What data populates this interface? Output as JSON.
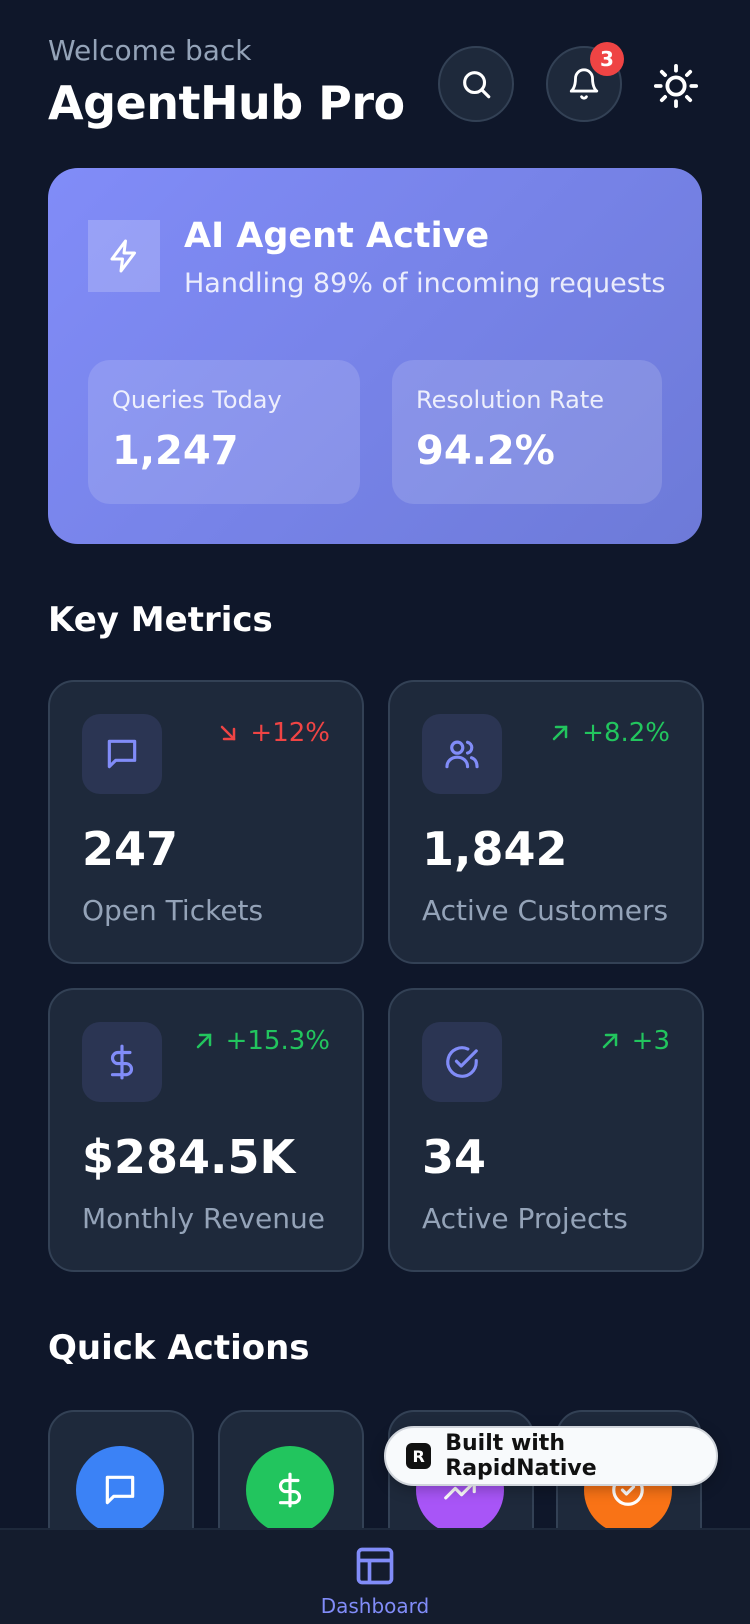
{
  "header": {
    "welcome": "Welcome back",
    "title": "AgentHub Pro",
    "notification_count": "3",
    "icons": [
      "search-icon",
      "bell-icon",
      "sun-icon"
    ]
  },
  "hero": {
    "title": "AI Agent Active",
    "subtitle": "Handling 89% of incoming requests",
    "icon": "lightning-icon",
    "stats": [
      {
        "label": "Queries Today",
        "value": "1,247"
      },
      {
        "label": "Resolution Rate",
        "value": "94.2%"
      }
    ],
    "gradient": [
      "#818cf8",
      "#6d7ad8"
    ]
  },
  "metrics": {
    "title": "Key Metrics",
    "items": [
      {
        "icon": "message-icon",
        "trend": "+12%",
        "direction": "down",
        "value": "247",
        "label": "Open Tickets"
      },
      {
        "icon": "users-icon",
        "trend": "+8.2%",
        "direction": "up",
        "value": "1,842",
        "label": "Active Customers"
      },
      {
        "icon": "dollar-icon",
        "trend": "+15.3%",
        "direction": "up",
        "value": "$284.5K",
        "label": "Monthly Revenue"
      },
      {
        "icon": "check-circle-icon",
        "trend": "+3",
        "direction": "up",
        "value": "34",
        "label": "Active Projects"
      }
    ]
  },
  "quick_actions": {
    "title": "Quick Actions",
    "items": [
      {
        "icon": "message-icon",
        "color": "#3b82f6"
      },
      {
        "icon": "dollar-icon",
        "color": "#22c55e"
      },
      {
        "icon": "trending-up-icon",
        "color": "#a855f7"
      },
      {
        "icon": "check-circle-icon",
        "color": "#f97316"
      }
    ]
  },
  "badge": {
    "text": "Built with RapidNative"
  },
  "tabbar": {
    "active_label": "Dashboard",
    "icon": "layout-icon"
  },
  "colors": {
    "background": "#0f172a",
    "card": "#1e293b",
    "accent": "#818cf8",
    "up": "#22c55e",
    "down": "#ef4444"
  }
}
